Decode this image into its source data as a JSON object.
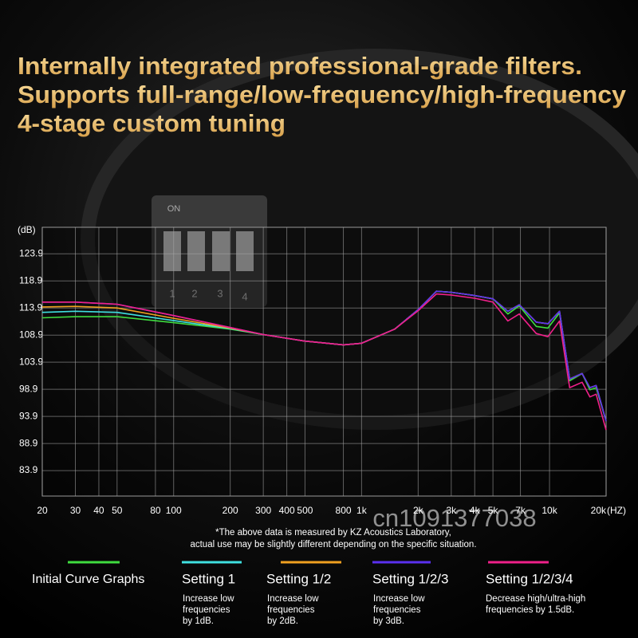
{
  "chart_data": {
    "type": "line",
    "title": [
      "Internally integrated professional-grade filters.",
      "Supports full-range/low-frequency/high-frequency",
      "4-stage custom tuning"
    ],
    "y_label": "(dB)",
    "x_label": "(HZ)",
    "xscale": "log",
    "grid": true,
    "xlim": [
      20,
      20000
    ],
    "ylim": [
      79.2,
      128.8
    ],
    "yticks": [
      83.9,
      88.9,
      93.9,
      98.9,
      103.9,
      108.9,
      113.9,
      118.9,
      123.9
    ],
    "xticks": [
      20,
      30,
      40,
      50,
      80,
      100,
      200,
      300,
      400,
      500,
      800,
      {
        "value": 1000,
        "label": "1k"
      },
      {
        "value": 2000,
        "label": "2k"
      },
      {
        "value": 3000,
        "label": "3k"
      },
      {
        "value": 4000,
        "label": "4k"
      },
      {
        "value": 5000,
        "label": "5k"
      },
      {
        "value": 7000,
        "label": "7k"
      },
      {
        "value": 10000,
        "label": "10k"
      },
      {
        "value": 20000,
        "label": "20k"
      }
    ],
    "x": [
      20,
      30,
      50,
      100,
      200,
      300,
      500,
      800,
      1000,
      1500,
      2000,
      2500,
      3000,
      4000,
      5000,
      6000,
      6900,
      8500,
      9800,
      11300,
      12800,
      14900,
      16400,
      17700,
      20000
    ],
    "series": [
      {
        "name": "Initial Curve Graphs",
        "color": "#3fdc3f",
        "values": [
          112.1,
          112.3,
          112.3,
          111.2,
          110.0,
          109.0,
          107.8,
          107.1,
          107.4,
          110.0,
          113.6,
          117.0,
          116.8,
          116.2,
          115.6,
          112.8,
          114.3,
          110.5,
          110.2,
          113.0,
          100.5,
          101.8,
          98.8,
          99.2,
          93.0
        ]
      },
      {
        "name": "Setting 1",
        "color": "#3fe0e0",
        "description": [
          "Increase low",
          "frequencies",
          "by 1dB."
        ],
        "values": [
          113.1,
          113.3,
          113.1,
          111.6,
          110.1,
          109.0,
          107.8,
          107.1,
          107.4,
          110.0,
          113.6,
          117.0,
          116.8,
          116.2,
          115.6,
          113.3,
          114.5,
          111.3,
          111.0,
          113.3,
          100.8,
          101.8,
          99.2,
          99.6,
          93.0
        ]
      },
      {
        "name": "Setting 1/2",
        "color": "#f0a020",
        "description": [
          "Increase low",
          "frequencies",
          "by 2dB."
        ],
        "values": [
          114.1,
          114.2,
          113.9,
          112.0,
          110.2,
          109.0,
          107.8,
          107.1,
          107.4,
          110.0,
          113.6,
          117.0,
          116.8,
          116.2,
          115.6,
          113.3,
          114.5,
          111.3,
          111.0,
          113.3,
          100.8,
          101.8,
          99.2,
          99.6,
          93.0
        ]
      },
      {
        "name": "Setting 1/2/3",
        "color": "#5a30f0",
        "description": [
          "Increase low",
          "frequencies",
          "by 3dB."
        ],
        "values": [
          115.0,
          115.0,
          114.6,
          112.5,
          110.3,
          109.0,
          107.8,
          107.1,
          107.4,
          110.0,
          113.6,
          117.0,
          116.8,
          116.2,
          115.6,
          113.3,
          114.5,
          111.3,
          111.0,
          113.3,
          100.8,
          101.8,
          99.2,
          99.6,
          93.0
        ]
      },
      {
        "name": "Setting 1/2/3/4",
        "color": "#f0208a",
        "description": [
          "Decrease high/ultra-high",
          "frequencies by 1.5dB."
        ],
        "values": [
          115.0,
          115.0,
          114.6,
          112.5,
          110.3,
          109.0,
          107.8,
          107.1,
          107.4,
          110.0,
          113.4,
          116.5,
          116.3,
          115.7,
          115.0,
          111.5,
          112.8,
          109.2,
          108.6,
          111.5,
          99.2,
          100.2,
          97.5,
          98.0,
          91.4
        ]
      }
    ],
    "footnote": [
      "*The above data is measured by KZ Acoustics Laboratory,",
      "actual use may be slightly different depending on the specific situation."
    ]
  },
  "decoration": {
    "switch_labels": [
      "ON",
      "1",
      "2",
      "3",
      "4"
    ],
    "watermark": "cn1091377038"
  }
}
